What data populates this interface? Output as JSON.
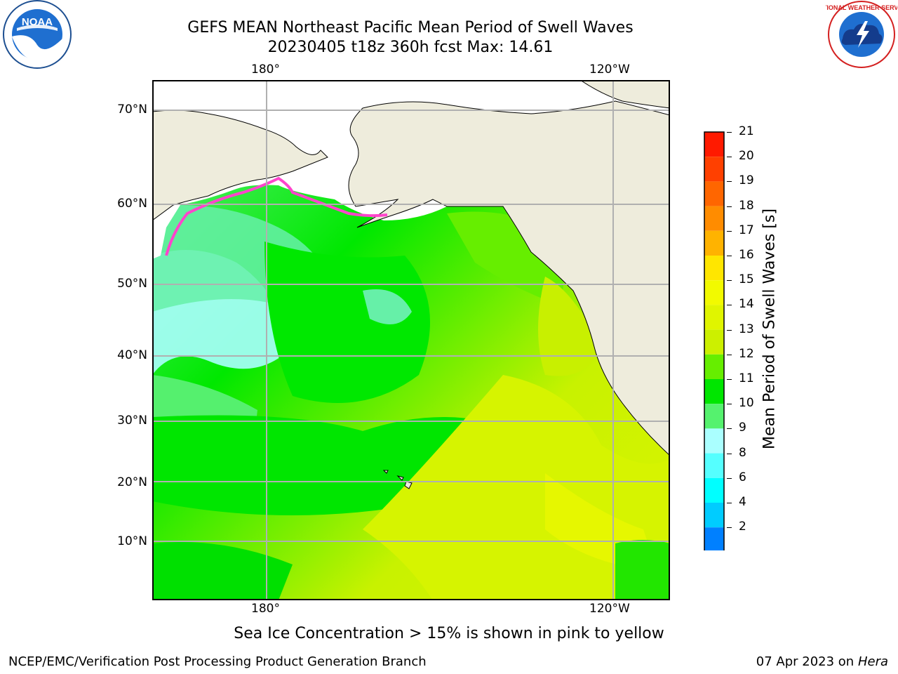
{
  "title": {
    "line1": "GEFS MEAN Northeast Pacific Mean Period of Swell Waves",
    "line2": "20230405 t18z 360h fcst   Max: 14.61"
  },
  "map": {
    "lon_labels": [
      "180°",
      "120°W"
    ],
    "lat_labels": [
      "70°N",
      "60°N",
      "50°N",
      "40°N",
      "30°N",
      "20°N",
      "10°N"
    ]
  },
  "colorbar": {
    "label": "Mean Period of Swell Waves [s]",
    "ticks": [
      "21",
      "20",
      "19",
      "18",
      "17",
      "16",
      "15",
      "14",
      "13",
      "12",
      "11",
      "10",
      "9",
      "8",
      "6",
      "4",
      "2"
    ],
    "colors": [
      "#ff1a00",
      "#ff4000",
      "#ff6600",
      "#ff8c00",
      "#ffb300",
      "#ffe600",
      "#f2fa00",
      "#e0f500",
      "#ccf000",
      "#66ee00",
      "#00e600",
      "#55f26e",
      "#aaffff",
      "#55ffff",
      "#00ffff",
      "#00ccff",
      "#0080ff"
    ]
  },
  "note": "Sea Ice Concentration > 15% is shown in pink to yellow",
  "footer": {
    "left": "NCEP/EMC/Verification Post Processing Product Generation Branch",
    "date": "07 Apr 2023 on",
    "machine": "Hera"
  },
  "logos": {
    "noaa": "NOAA",
    "nws": "NATIONAL WEATHER SERVICE"
  }
}
